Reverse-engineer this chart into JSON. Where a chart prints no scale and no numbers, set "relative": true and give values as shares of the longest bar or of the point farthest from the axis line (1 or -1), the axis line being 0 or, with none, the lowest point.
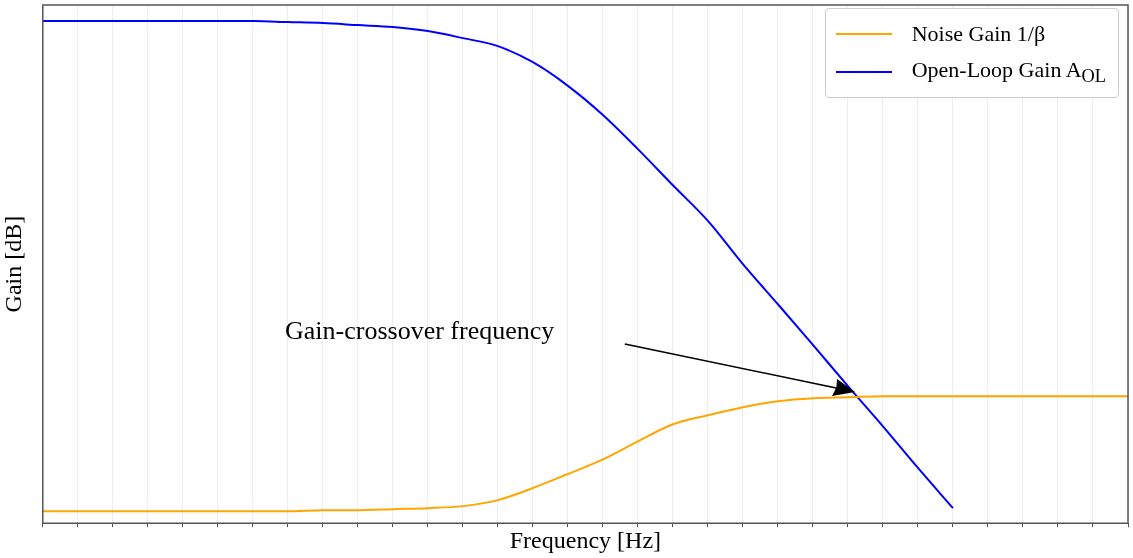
{
  "chart_data": {
    "type": "line",
    "relative": true,
    "xlabel": "Frequency [Hz]",
    "ylabel": "Gain [dB]",
    "categories": [
      null,
      null,
      null,
      null,
      null,
      null,
      null,
      null,
      null,
      null,
      null,
      null,
      null,
      null,
      null,
      null,
      null,
      null,
      null,
      null,
      null,
      null,
      null,
      null,
      null,
      null,
      null,
      null,
      null,
      null,
      null,
      null
    ],
    "series": [
      {
        "name": "Noise Gain 1/β",
        "color": "#ffa500",
        "values": [
          0.024,
          0.024,
          0.024,
          0.024,
          0.024,
          0.024,
          0.024,
          0.024,
          0.026,
          0.026,
          0.028,
          0.03,
          0.034,
          0.046,
          0.07,
          0.098,
          0.127,
          0.163,
          0.197,
          0.215,
          0.231,
          0.243,
          0.249,
          0.251,
          0.253,
          0.253,
          0.253,
          0.253,
          0.253,
          0.253,
          0.253,
          0.253
        ]
      },
      {
        "name": "Open-Loop Gain A$_{OL}$",
        "color": "#0000ff",
        "values": [
          1,
          1,
          1,
          1,
          1,
          1,
          1,
          0.998,
          0.996,
          0.992,
          0.988,
          0.98,
          0.966,
          0.95,
          0.918,
          0.871,
          0.813,
          0.745,
          0.673,
          0.602,
          0.516,
          0.436,
          0.355,
          0.273,
          0.193,
          0.11,
          0.03,
          null,
          null,
          null,
          null,
          null
        ]
      }
    ],
    "annotations": [
      "Gain-crossover frequency"
    ],
    "grid": "x",
    "legend": "top right",
    "tick_labels": false,
    "marker": "none",
    "line_style": "solid"
  }
}
